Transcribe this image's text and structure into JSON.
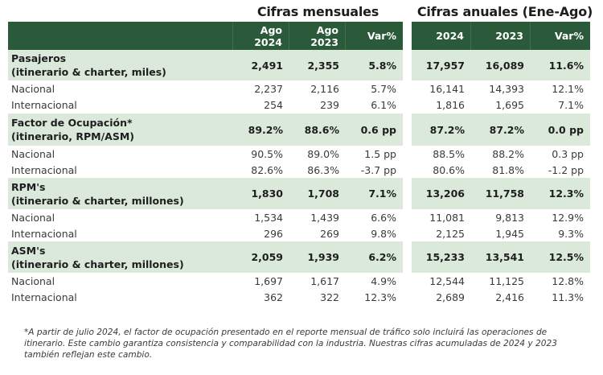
{
  "group_titles": {
    "monthly": "Cifras mensuales",
    "annual": "Cifras anuales (Ene-Ago)"
  },
  "header": {
    "monthly": [
      "Ago\n2024",
      "Ago\n2023",
      "Var%"
    ],
    "monthly_lines": [
      [
        "Ago",
        "2024"
      ],
      [
        "Ago",
        "2023"
      ],
      [
        "Var%"
      ]
    ],
    "annual": [
      "2024",
      "2023",
      "Var%"
    ]
  },
  "colors": {
    "header_bg": "#2a5a3a",
    "header_text": "#ffffff",
    "main_row_bg": "#dbe9db"
  },
  "rows": [
    {
      "type": "main",
      "label1": "Pasajeros",
      "label2": "(itinerario & charter, miles)",
      "m": [
        "2,491",
        "2,355",
        "5.8%"
      ],
      "a": [
        "17,957",
        "16,089",
        "11.6%"
      ]
    },
    {
      "type": "sub",
      "label": "Nacional",
      "m": [
        "2,237",
        "2,116",
        "5.7%"
      ],
      "a": [
        "16,141",
        "14,393",
        "12.1%"
      ]
    },
    {
      "type": "sub",
      "label": "Internacional",
      "m": [
        "254",
        "239",
        "6.1%"
      ],
      "a": [
        "1,816",
        "1,695",
        "7.1%"
      ]
    },
    {
      "type": "main",
      "label1": "Factor de Ocupación*",
      "label2": "(itinerario, RPM/ASM)",
      "m": [
        "89.2%",
        "88.6%",
        "0.6 pp"
      ],
      "a": [
        "87.2%",
        "87.2%",
        "0.0 pp"
      ]
    },
    {
      "type": "sub",
      "label": "Nacional",
      "m": [
        "90.5%",
        "89.0%",
        "1.5 pp"
      ],
      "a": [
        "88.5%",
        "88.2%",
        "0.3 pp"
      ]
    },
    {
      "type": "sub",
      "label": "Internacional",
      "m": [
        "82.6%",
        "86.3%",
        "-3.7 pp"
      ],
      "a": [
        "80.6%",
        "81.8%",
        "-1.2 pp"
      ]
    },
    {
      "type": "main",
      "label1": "RPM's",
      "label2": "(itinerario & charter, millones)",
      "m": [
        "1,830",
        "1,708",
        "7.1%"
      ],
      "a": [
        "13,206",
        "11,758",
        "12.3%"
      ]
    },
    {
      "type": "sub",
      "label": "Nacional",
      "m": [
        "1,534",
        "1,439",
        "6.6%"
      ],
      "a": [
        "11,081",
        "9,813",
        "12.9%"
      ]
    },
    {
      "type": "sub",
      "label": "Internacional",
      "m": [
        "296",
        "269",
        "9.8%"
      ],
      "a": [
        "2,125",
        "1,945",
        "9.3%"
      ]
    },
    {
      "type": "main",
      "label1": "ASM's",
      "label2": "(itinerario & charter, millones)",
      "m": [
        "2,059",
        "1,939",
        "6.2%"
      ],
      "a": [
        "15,233",
        "13,541",
        "12.5%"
      ]
    },
    {
      "type": "sub",
      "label": "Nacional",
      "m": [
        "1,697",
        "1,617",
        "4.9%"
      ],
      "a": [
        "12,544",
        "11,125",
        "12.8%"
      ]
    },
    {
      "type": "sub",
      "label": "Internacional",
      "m": [
        "362",
        "322",
        "12.3%"
      ],
      "a": [
        "2,689",
        "2,416",
        "11.3%"
      ]
    }
  ],
  "footnote": "*A partir de julio 2024, el factor de ocupación presentado en el reporte mensual de tráfico solo incluirá las operaciones de itinerario. Este cambio garantiza consistencia y comparabilidad con la industria. Nuestras cifras acumuladas de 2024 y 2023 también reflejan este cambio."
}
